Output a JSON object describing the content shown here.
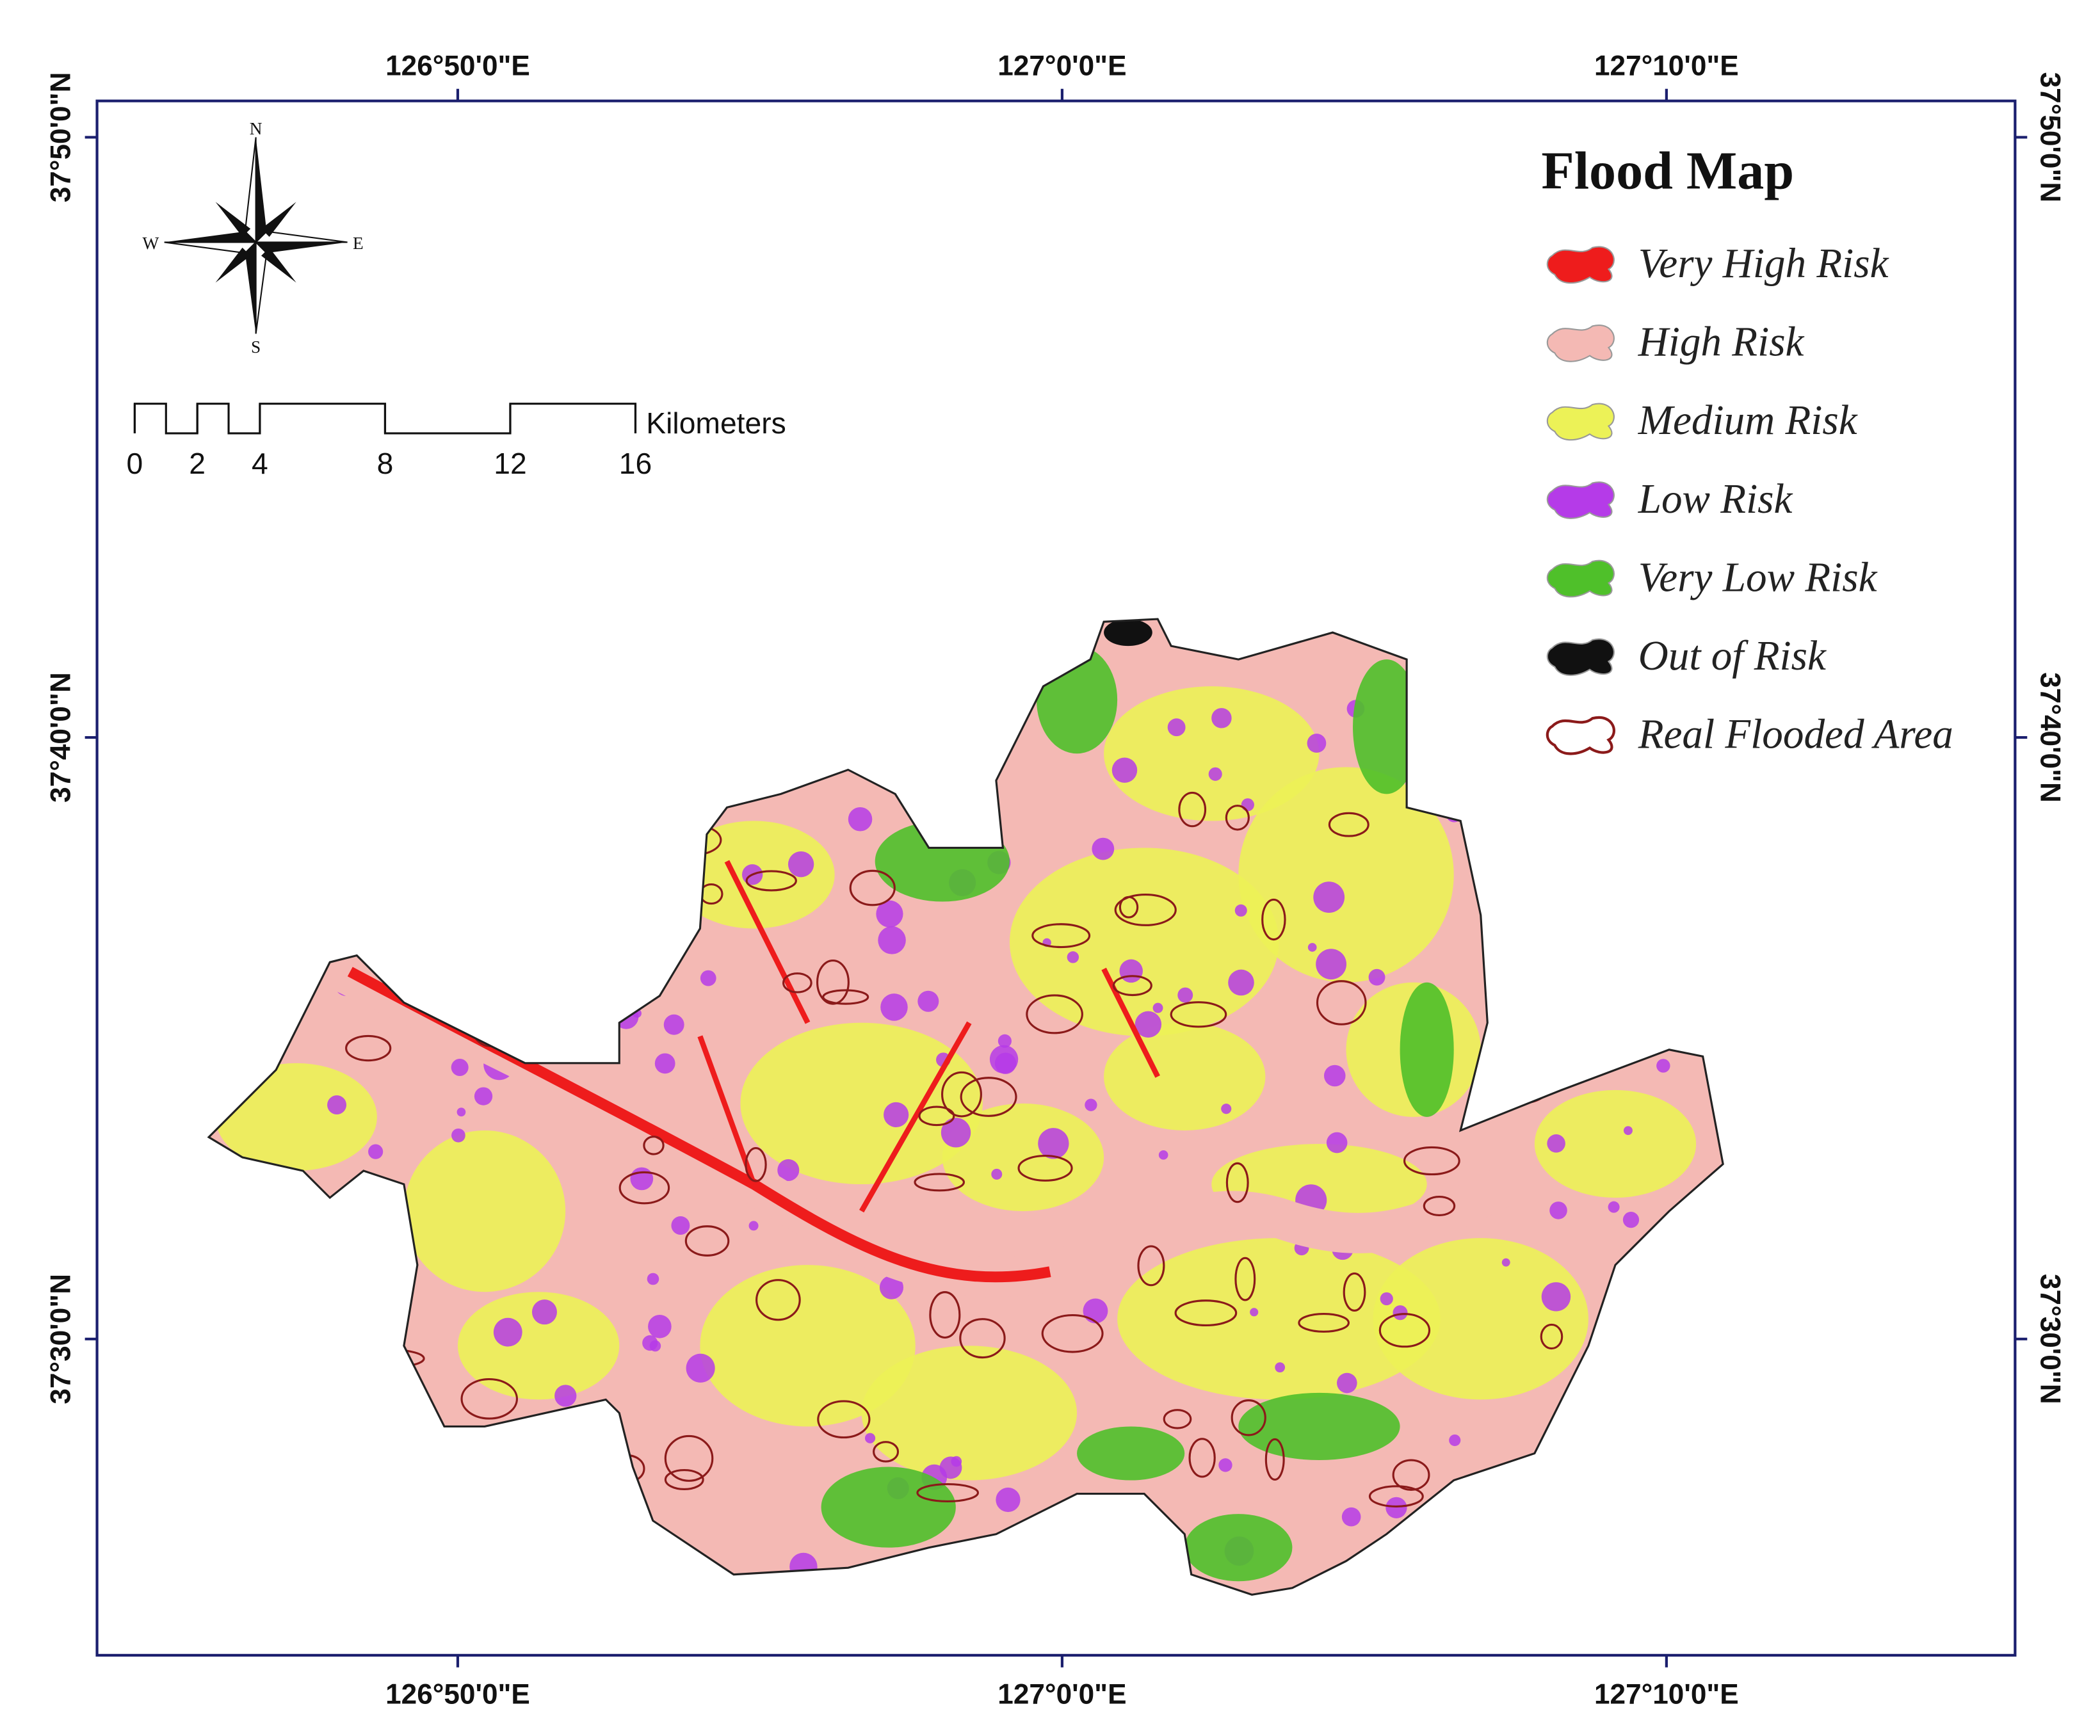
{
  "map": {
    "title": "Flood Map",
    "legend": [
      {
        "label": "Very High Risk",
        "color": "#ee1c1c"
      },
      {
        "label": "High Risk",
        "color": "#f4b9b4"
      },
      {
        "label": "Medium Risk",
        "color": "#ecf257"
      },
      {
        "label": "Low Risk",
        "color": "#b53be8"
      },
      {
        "label": "Very Low Risk",
        "color": "#4fc02a"
      },
      {
        "label": "Out of Risk",
        "color": "#111111"
      },
      {
        "label": "Real Flooded Area",
        "color": "#8b1a1a",
        "outline": true
      }
    ],
    "scale_bar": {
      "unit": "Kilometers",
      "ticks": [
        0,
        2,
        4,
        8,
        12,
        16
      ]
    },
    "compass": {
      "north": "N",
      "south": "S",
      "east": "E",
      "west": "W"
    },
    "longitude_labels": {
      "top": [
        "126°50'0\"E",
        "127°0'0\"E",
        "127°10'0\"E"
      ],
      "bottom": [
        "126°50'0\"E",
        "127°0'0\"E",
        "127°10'0\"E"
      ]
    },
    "latitude_labels": {
      "left": [
        "37°50'0\"N",
        "37°40'0\"N",
        "37°30'0\"N"
      ],
      "right": [
        "37°50'0\"N",
        "37°40'0\"N",
        "37°30'0\"N"
      ]
    }
  }
}
